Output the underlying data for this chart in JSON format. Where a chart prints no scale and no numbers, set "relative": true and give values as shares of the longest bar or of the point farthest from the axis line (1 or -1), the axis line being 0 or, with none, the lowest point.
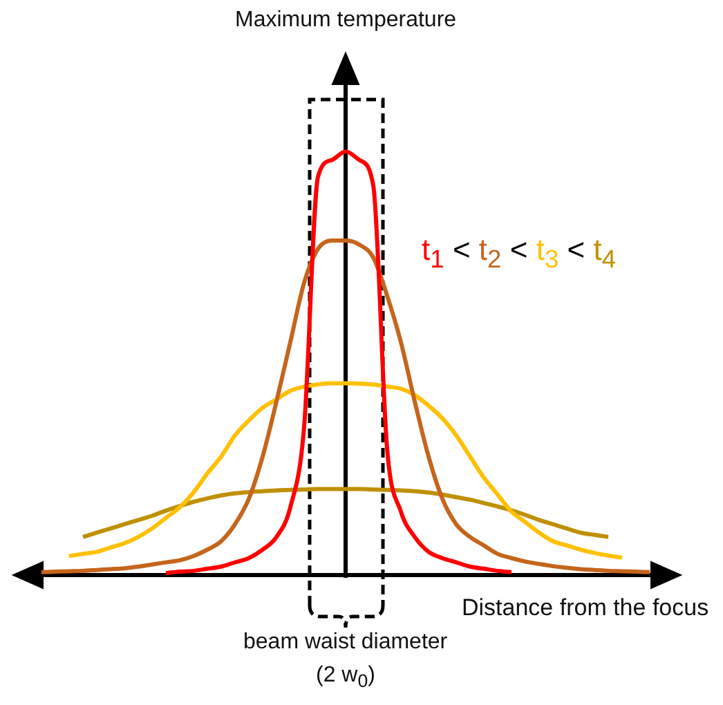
{
  "chart_data": {
    "type": "line",
    "relative": true,
    "xlabel": "Distance from the focus",
    "legend": "right",
    "marker": "none",
    "line_style": "solid",
    "annotations": [
      "beam waist diameter",
      "(2 w$_{0}$)",
      "<",
      "Maximum temperature"
    ],
    "categories": [
      null,
      null,
      null,
      null,
      null,
      null,
      null,
      null,
      null,
      null,
      null,
      null,
      null,
      null,
      null,
      null,
      null,
      null,
      null,
      null,
      null,
      null,
      null,
      null,
      null,
      null,
      null,
      null,
      null,
      null,
      null,
      null,
      null,
      null,
      null,
      null,
      null,
      null,
      null,
      null,
      null,
      null,
      null,
      null,
      null
    ],
    "series": [
      {
        "name": "t$_{1}$",
        "color": "#ff0000",
        "values": [
          null,
          null,
          null,
          null,
          null,
          null,
          null,
          null,
          null,
          0.005,
          0.008,
          0.01,
          0.015,
          0.02,
          0.03,
          0.04,
          0.06,
          0.09,
          0.16,
          0.35,
          0.94,
          0.98,
          1,
          0.98,
          0.92,
          0.3,
          0.15,
          0.09,
          0.055,
          0.04,
          0.03,
          0.02,
          0.015,
          0.01,
          0.007,
          null,
          null,
          null,
          null,
          null,
          null,
          null,
          null,
          null,
          null
        ]
      },
      {
        "name": "t$_{2}$",
        "color": "#c5651c",
        "values": [
          0.007,
          0.008,
          0.009,
          0.01,
          0.012,
          0.014,
          0.016,
          0.02,
          0.025,
          0.03,
          0.035,
          0.045,
          0.06,
          0.08,
          0.12,
          0.18,
          0.28,
          0.41,
          0.55,
          0.69,
          0.77,
          0.79,
          0.79,
          0.78,
          0.75,
          0.66,
          0.55,
          0.41,
          0.28,
          0.18,
          0.12,
          0.09,
          0.07,
          0.05,
          0.04,
          0.032,
          0.026,
          0.021,
          0.017,
          0.014,
          0.012,
          0.01,
          0.009,
          0.008,
          0.007
        ]
      },
      {
        "name": "t$_{3}$",
        "color": "#ffc000",
        "values": [
          null,
          null,
          0.045,
          0.05,
          0.055,
          0.065,
          0.075,
          0.09,
          0.11,
          0.135,
          0.16,
          0.195,
          0.24,
          0.28,
          0.33,
          0.365,
          0.395,
          0.415,
          0.435,
          0.445,
          0.45,
          0.453,
          0.453,
          0.452,
          0.45,
          0.445,
          0.44,
          0.425,
          0.4,
          0.37,
          0.33,
          0.28,
          0.23,
          0.19,
          0.15,
          0.125,
          0.1,
          0.08,
          0.07,
          0.06,
          0.052,
          0.046,
          0.041,
          null,
          null
        ]
      },
      {
        "name": "t$_{4}$",
        "color": "#bf9000",
        "values": [
          null,
          null,
          null,
          0.09,
          0.1,
          0.11,
          0.12,
          0.13,
          0.14,
          0.152,
          0.163,
          0.173,
          0.181,
          0.188,
          0.193,
          0.196,
          0.198,
          0.2,
          0.201,
          0.202,
          0.203,
          0.203,
          0.203,
          0.203,
          0.202,
          0.201,
          0.2,
          0.198,
          0.195,
          0.19,
          0.184,
          0.178,
          0.17,
          0.162,
          0.153,
          0.142,
          0.13,
          0.12,
          0.11,
          0.1,
          0.095,
          0.09,
          null,
          null,
          null
        ]
      }
    ]
  }
}
